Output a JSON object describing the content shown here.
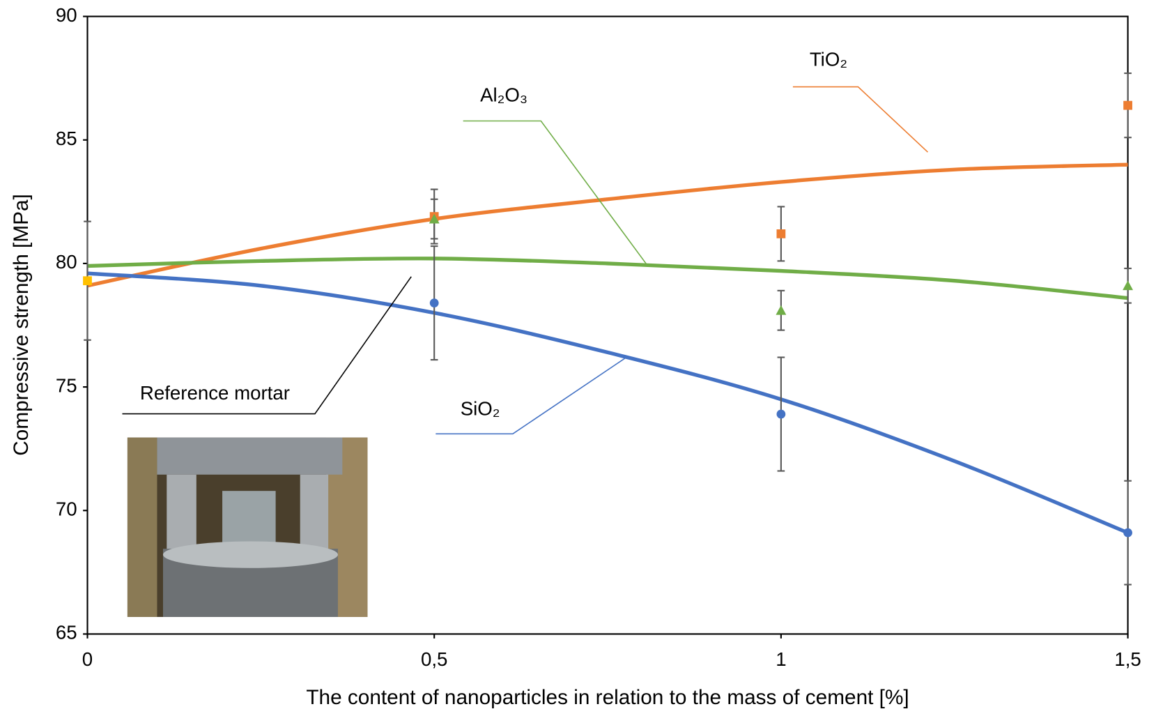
{
  "chart_data": {
    "type": "scatter",
    "x_label": "The content of nanoparticles in relation to the mass of cement  [%]",
    "y_label": "Compressive strength  [MPa]",
    "xlim": [
      0,
      1.5
    ],
    "ylim": [
      65,
      90
    ],
    "xticks": [
      0,
      {
        "value": 0.5,
        "label": "0,5"
      },
      1,
      {
        "value": 1.5,
        "label": "1,5"
      }
    ],
    "yticks": [
      65,
      70,
      75,
      80,
      85,
      90
    ],
    "series": [
      {
        "name": "TiO₂",
        "color": "#ed7d31",
        "marker": "square",
        "x": [
          0.5,
          1,
          1.5
        ],
        "values": [
          81.9,
          81.2,
          86.4
        ],
        "errors": [
          1.1,
          1.1,
          1.3
        ],
        "trend": {
          "x": [
            0,
            0.25,
            0.5,
            0.75,
            1,
            1.25,
            1.5
          ],
          "values": [
            79.1,
            80.6,
            81.8,
            82.6,
            83.3,
            83.8,
            84.0
          ]
        }
      },
      {
        "name": "Al₂O₃",
        "color": "#70ad47",
        "marker": "triangle",
        "x": [
          0.5,
          1,
          1.5
        ],
        "values": [
          81.8,
          78.1,
          79.1
        ],
        "errors": [
          0.8,
          0.8,
          0.7
        ],
        "trend": {
          "x": [
            0,
            0.25,
            0.5,
            0.75,
            1,
            1.25,
            1.5
          ],
          "values": [
            79.9,
            80.1,
            80.2,
            80.0,
            79.7,
            79.3,
            78.6
          ]
        }
      },
      {
        "name": "SiO₂",
        "color": "#4472c4",
        "marker": "circle",
        "x": [
          0.5,
          1,
          1.5
        ],
        "values": [
          78.4,
          73.9,
          69.1
        ],
        "errors": [
          2.3,
          2.3,
          2.1
        ],
        "trend": {
          "x": [
            0,
            0.25,
            0.5,
            0.75,
            1,
            1.25,
            1.5
          ],
          "values": [
            79.6,
            79.1,
            78.0,
            76.4,
            74.5,
            72.0,
            69.1
          ]
        }
      },
      {
        "name": "Reference mortar",
        "color": "#ffc000",
        "marker": "square",
        "x": [
          0
        ],
        "values": [
          79.3
        ],
        "errors": [
          2.4
        ]
      }
    ]
  }
}
